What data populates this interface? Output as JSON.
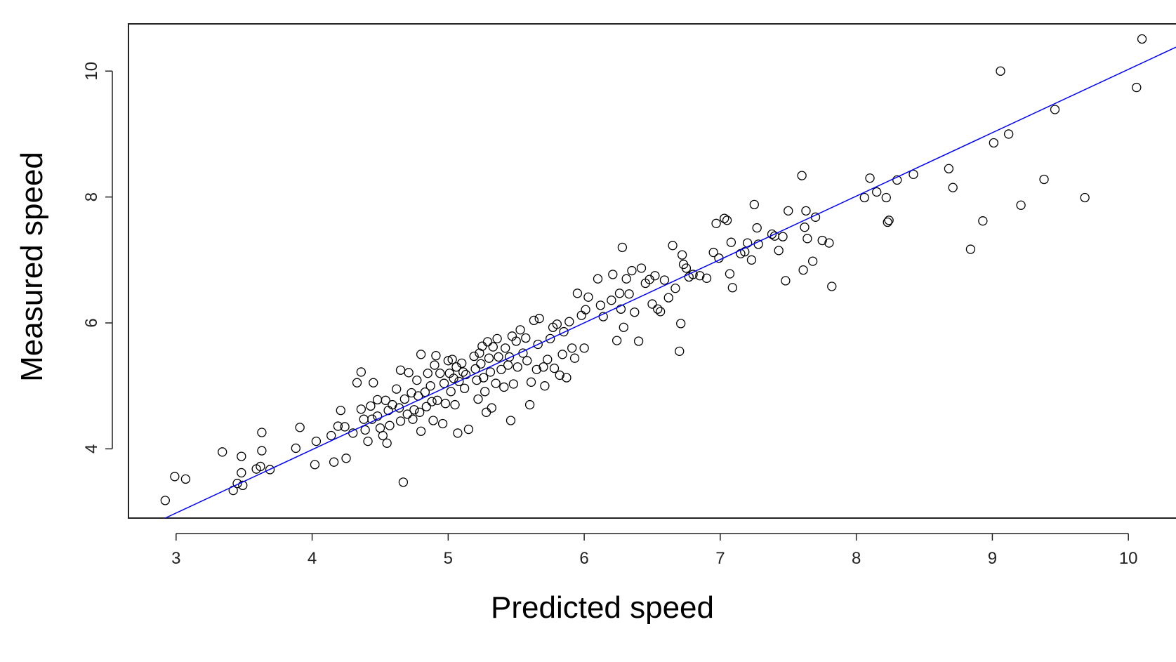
{
  "chart_data": {
    "type": "scatter",
    "title": "",
    "xlabel": "Predicted speed",
    "ylabel": "Measured speed",
    "xlim": [
      2.65,
      10.35
    ],
    "ylim": [
      2.9,
      10.75
    ],
    "grid": false,
    "x_ticks": [
      "3",
      "4",
      "5",
      "6",
      "7",
      "8",
      "9",
      "10"
    ],
    "y_ticks": [
      "4",
      "6",
      "8",
      "10"
    ],
    "colors": {
      "points": "#000000",
      "fit_line": "#0000ff",
      "frame": "#222222"
    },
    "fit_line": {
      "x": [
        2.92,
        10.35
      ],
      "y": [
        2.9,
        10.38
      ]
    },
    "series": [
      {
        "marker": "open-circle",
        "points": [
          [
            2.92,
            3.18
          ],
          [
            2.99,
            3.56
          ],
          [
            3.07,
            3.52
          ],
          [
            3.34,
            3.95
          ],
          [
            3.42,
            3.34
          ],
          [
            3.45,
            3.45
          ],
          [
            3.48,
            3.62
          ],
          [
            3.48,
            3.88
          ],
          [
            3.49,
            3.42
          ],
          [
            3.59,
            3.68
          ],
          [
            3.62,
            3.72
          ],
          [
            3.63,
            3.97
          ],
          [
            3.63,
            4.26
          ],
          [
            3.69,
            3.67
          ],
          [
            3.88,
            4.01
          ],
          [
            3.91,
            4.34
          ],
          [
            4.02,
            3.75
          ],
          [
            4.03,
            4.12
          ],
          [
            4.14,
            4.21
          ],
          [
            4.16,
            3.79
          ],
          [
            4.19,
            4.36
          ],
          [
            4.21,
            4.61
          ],
          [
            4.24,
            4.35
          ],
          [
            4.25,
            3.85
          ],
          [
            4.3,
            4.25
          ],
          [
            4.33,
            5.05
          ],
          [
            4.36,
            4.63
          ],
          [
            4.36,
            5.22
          ],
          [
            4.38,
            4.47
          ],
          [
            4.39,
            4.3
          ],
          [
            4.41,
            4.12
          ],
          [
            4.43,
            4.68
          ],
          [
            4.44,
            4.47
          ],
          [
            4.45,
            5.05
          ],
          [
            4.48,
            4.52
          ],
          [
            4.48,
            4.78
          ],
          [
            4.5,
            4.33
          ],
          [
            4.52,
            4.21
          ],
          [
            4.54,
            4.77
          ],
          [
            4.55,
            4.09
          ],
          [
            4.56,
            4.61
          ],
          [
            4.57,
            4.37
          ],
          [
            4.59,
            4.7
          ],
          [
            4.62,
            4.95
          ],
          [
            4.64,
            4.65
          ],
          [
            4.65,
            5.25
          ],
          [
            4.65,
            4.44
          ],
          [
            4.67,
            3.47
          ],
          [
            4.68,
            4.79
          ],
          [
            4.7,
            4.55
          ],
          [
            4.71,
            5.21
          ],
          [
            4.73,
            4.89
          ],
          [
            4.74,
            4.47
          ],
          [
            4.75,
            4.62
          ],
          [
            4.77,
            5.09
          ],
          [
            4.78,
            4.84
          ],
          [
            4.79,
            4.58
          ],
          [
            4.8,
            5.5
          ],
          [
            4.8,
            4.28
          ],
          [
            4.83,
            4.9
          ],
          [
            4.84,
            4.67
          ],
          [
            4.85,
            5.2
          ],
          [
            4.87,
            5.0
          ],
          [
            4.88,
            4.75
          ],
          [
            4.89,
            4.45
          ],
          [
            4.9,
            5.33
          ],
          [
            4.91,
            5.48
          ],
          [
            4.92,
            4.77
          ],
          [
            4.94,
            5.2
          ],
          [
            4.96,
            4.4
          ],
          [
            4.97,
            5.04
          ],
          [
            4.98,
            4.72
          ],
          [
            5.0,
            5.4
          ],
          [
            5.01,
            5.2
          ],
          [
            5.02,
            4.91
          ],
          [
            5.03,
            5.42
          ],
          [
            5.04,
            5.12
          ],
          [
            5.05,
            4.7
          ],
          [
            5.06,
            5.3
          ],
          [
            5.07,
            4.25
          ],
          [
            5.08,
            5.07
          ],
          [
            5.1,
            5.36
          ],
          [
            5.11,
            5.22
          ],
          [
            5.12,
            4.96
          ],
          [
            5.13,
            5.18
          ],
          [
            5.15,
            4.31
          ],
          [
            5.19,
            5.47
          ],
          [
            5.2,
            5.27
          ],
          [
            5.21,
            5.09
          ],
          [
            5.22,
            4.79
          ],
          [
            5.23,
            5.52
          ],
          [
            5.24,
            5.35
          ],
          [
            5.25,
            5.63
          ],
          [
            5.26,
            5.13
          ],
          [
            5.27,
            4.91
          ],
          [
            5.28,
            4.58
          ],
          [
            5.29,
            5.7
          ],
          [
            5.3,
            5.44
          ],
          [
            5.31,
            5.22
          ],
          [
            5.32,
            4.65
          ],
          [
            5.33,
            5.62
          ],
          [
            5.35,
            5.04
          ],
          [
            5.36,
            5.75
          ],
          [
            5.37,
            5.46
          ],
          [
            5.39,
            5.26
          ],
          [
            5.41,
            4.98
          ],
          [
            5.42,
            5.6
          ],
          [
            5.44,
            5.33
          ],
          [
            5.45,
            5.46
          ],
          [
            5.46,
            4.45
          ],
          [
            5.47,
            5.79
          ],
          [
            5.48,
            5.03
          ],
          [
            5.5,
            5.71
          ],
          [
            5.51,
            5.3
          ],
          [
            5.53,
            5.89
          ],
          [
            5.55,
            5.52
          ],
          [
            5.57,
            5.76
          ],
          [
            5.58,
            5.4
          ],
          [
            5.6,
            4.7
          ],
          [
            5.61,
            5.06
          ],
          [
            5.63,
            6.04
          ],
          [
            5.65,
            5.26
          ],
          [
            5.66,
            5.66
          ],
          [
            5.67,
            6.07
          ],
          [
            5.7,
            5.3
          ],
          [
            5.71,
            5.0
          ],
          [
            5.73,
            5.42
          ],
          [
            5.75,
            5.75
          ],
          [
            5.77,
            5.93
          ],
          [
            5.78,
            5.28
          ],
          [
            5.8,
            5.98
          ],
          [
            5.82,
            5.17
          ],
          [
            5.84,
            5.5
          ],
          [
            5.85,
            5.86
          ],
          [
            5.87,
            5.13
          ],
          [
            5.89,
            6.02
          ],
          [
            5.91,
            5.6
          ],
          [
            5.93,
            5.44
          ],
          [
            5.95,
            6.47
          ],
          [
            5.98,
            6.12
          ],
          [
            6.0,
            5.6
          ],
          [
            6.01,
            6.21
          ],
          [
            6.03,
            6.41
          ],
          [
            6.1,
            6.7
          ],
          [
            6.12,
            6.28
          ],
          [
            6.14,
            6.1
          ],
          [
            6.2,
            6.36
          ],
          [
            6.21,
            6.77
          ],
          [
            6.24,
            5.72
          ],
          [
            6.26,
            6.47
          ],
          [
            6.27,
            6.22
          ],
          [
            6.28,
            7.2
          ],
          [
            6.29,
            5.93
          ],
          [
            6.31,
            6.7
          ],
          [
            6.33,
            6.46
          ],
          [
            6.35,
            6.83
          ],
          [
            6.37,
            6.17
          ],
          [
            6.4,
            5.71
          ],
          [
            6.42,
            6.87
          ],
          [
            6.45,
            6.63
          ],
          [
            6.48,
            6.69
          ],
          [
            6.5,
            6.3
          ],
          [
            6.52,
            6.75
          ],
          [
            6.54,
            6.22
          ],
          [
            6.56,
            6.18
          ],
          [
            6.59,
            6.68
          ],
          [
            6.62,
            6.4
          ],
          [
            6.65,
            7.23
          ],
          [
            6.67,
            6.55
          ],
          [
            6.7,
            5.55
          ],
          [
            6.71,
            5.99
          ],
          [
            6.72,
            7.08
          ],
          [
            6.73,
            6.93
          ],
          [
            6.75,
            6.87
          ],
          [
            6.77,
            6.73
          ],
          [
            6.8,
            6.77
          ],
          [
            6.85,
            6.75
          ],
          [
            6.9,
            6.71
          ],
          [
            6.95,
            7.12
          ],
          [
            6.97,
            7.58
          ],
          [
            6.99,
            7.03
          ],
          [
            7.03,
            7.66
          ],
          [
            7.05,
            7.63
          ],
          [
            7.07,
            6.78
          ],
          [
            7.08,
            7.28
          ],
          [
            7.09,
            6.56
          ],
          [
            7.15,
            7.1
          ],
          [
            7.18,
            7.13
          ],
          [
            7.2,
            7.27
          ],
          [
            7.23,
            7.0
          ],
          [
            7.25,
            7.88
          ],
          [
            7.27,
            7.51
          ],
          [
            7.28,
            7.25
          ],
          [
            7.38,
            7.41
          ],
          [
            7.4,
            7.38
          ],
          [
            7.43,
            7.15
          ],
          [
            7.46,
            7.37
          ],
          [
            7.48,
            6.67
          ],
          [
            7.5,
            7.78
          ],
          [
            7.6,
            8.34
          ],
          [
            7.61,
            6.84
          ],
          [
            7.62,
            7.52
          ],
          [
            7.63,
            7.78
          ],
          [
            7.64,
            7.34
          ],
          [
            7.68,
            6.98
          ],
          [
            7.7,
            7.68
          ],
          [
            7.75,
            7.31
          ],
          [
            7.8,
            7.27
          ],
          [
            7.82,
            6.58
          ],
          [
            8.06,
            7.99
          ],
          [
            8.1,
            8.3
          ],
          [
            8.15,
            8.08
          ],
          [
            8.22,
            7.99
          ],
          [
            8.23,
            7.6
          ],
          [
            8.24,
            7.63
          ],
          [
            8.3,
            8.27
          ],
          [
            8.42,
            8.36
          ],
          [
            8.68,
            8.45
          ],
          [
            8.71,
            8.15
          ],
          [
            8.84,
            7.17
          ],
          [
            8.93,
            7.62
          ],
          [
            9.01,
            8.86
          ],
          [
            9.06,
            10.0
          ],
          [
            9.12,
            9.0
          ],
          [
            9.21,
            7.87
          ],
          [
            9.38,
            8.28
          ],
          [
            9.46,
            9.39
          ],
          [
            9.68,
            7.99
          ],
          [
            10.06,
            9.74
          ],
          [
            10.1,
            10.51
          ]
        ]
      }
    ]
  }
}
